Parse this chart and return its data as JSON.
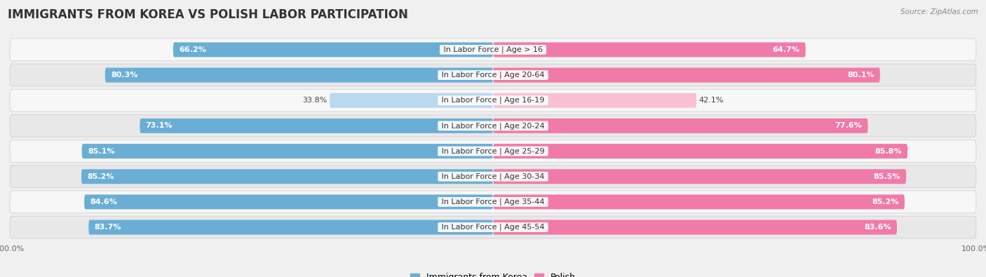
{
  "title": "IMMIGRANTS FROM KOREA VS POLISH LABOR PARTICIPATION",
  "source": "Source: ZipAtlas.com",
  "categories": [
    "In Labor Force | Age > 16",
    "In Labor Force | Age 20-64",
    "In Labor Force | Age 16-19",
    "In Labor Force | Age 20-24",
    "In Labor Force | Age 25-29",
    "In Labor Force | Age 30-34",
    "In Labor Force | Age 35-44",
    "In Labor Force | Age 45-54"
  ],
  "korea_values": [
    66.2,
    80.3,
    33.8,
    73.1,
    85.1,
    85.2,
    84.6,
    83.7
  ],
  "polish_values": [
    64.7,
    80.1,
    42.1,
    77.6,
    85.8,
    85.5,
    85.2,
    83.6
  ],
  "korea_color": "#6aaed6",
  "korea_light_color": "#b8d9ee",
  "polish_color": "#f07aa8",
  "polish_light_color": "#f9c0d5",
  "bar_height": 0.58,
  "background_color": "#f0f0f0",
  "row_bg_light": "#f7f7f7",
  "row_bg_dark": "#e8e8e8",
  "title_fontsize": 12,
  "label_fontsize": 8,
  "value_fontsize": 8,
  "max_value": 100.0,
  "legend_korea": "Immigrants from Korea",
  "legend_polish": "Polish"
}
